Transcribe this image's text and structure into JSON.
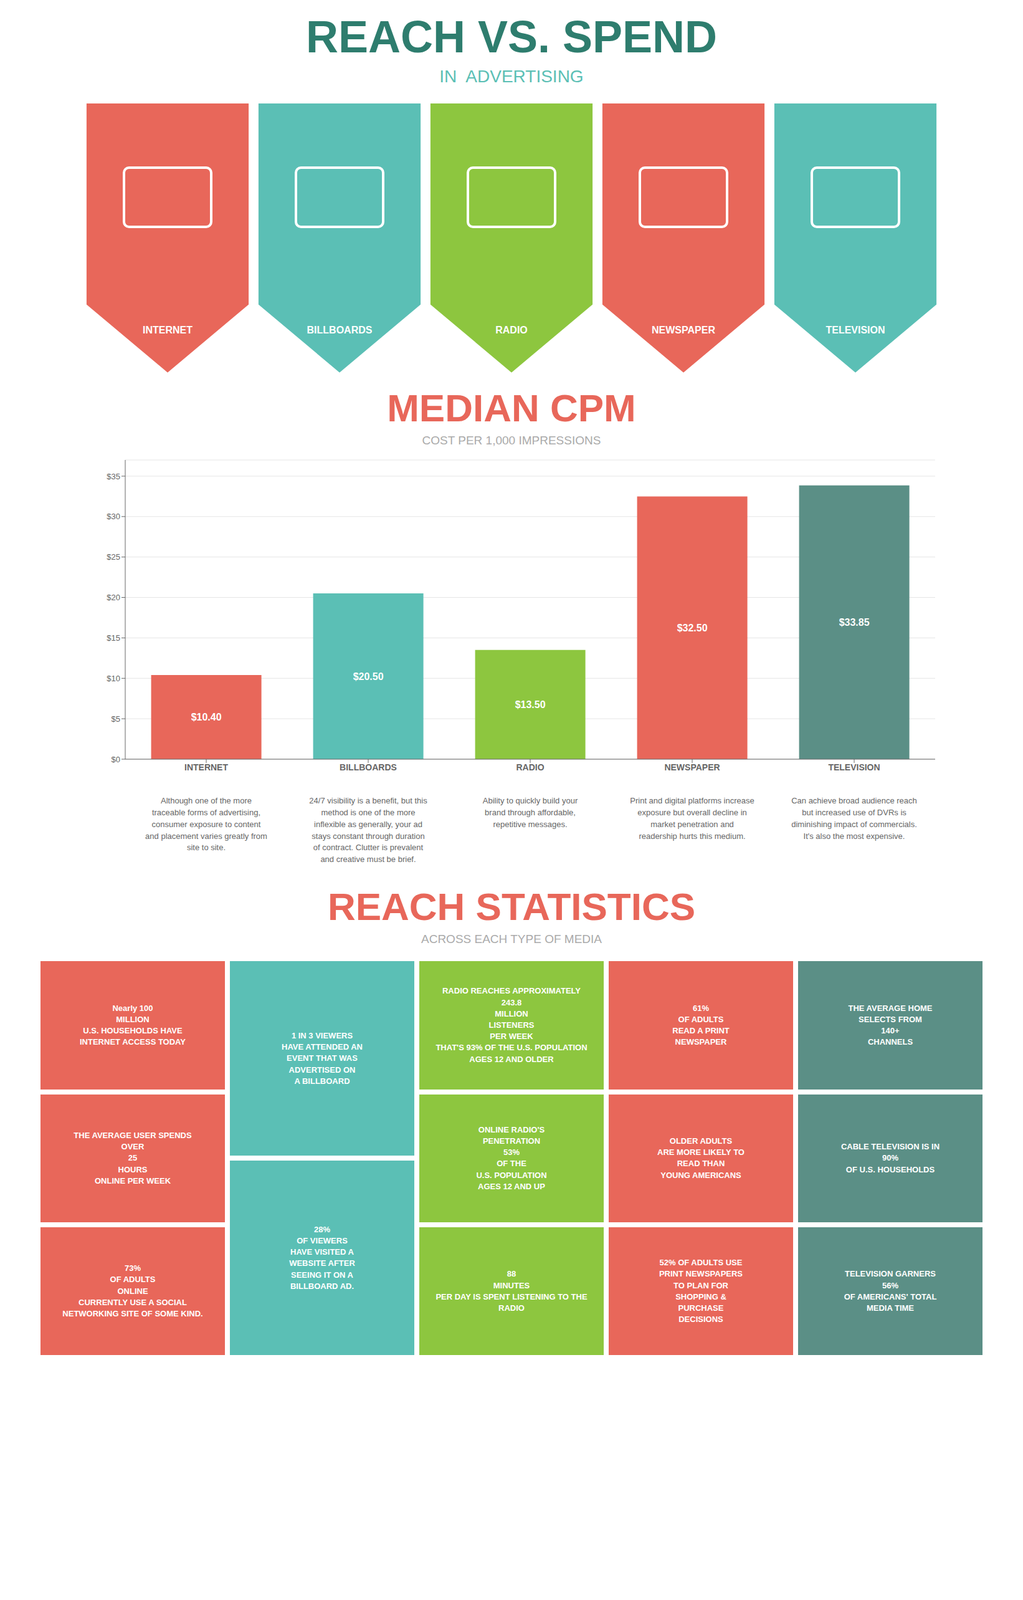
{
  "chart_data": {
    "type": "bar",
    "categories": [
      "INTERNET",
      "BILLBOARDS",
      "RADIO",
      "NEWSPAPER",
      "TELEVISION"
    ],
    "values": [
      10.4,
      20.5,
      13.5,
      32.5,
      33.85
    ],
    "value_labels": [
      "$10.40",
      "$20.50",
      "$13.50",
      "$32.50",
      "$33.85"
    ],
    "colors": [
      "#e8675a",
      "#5bbfb5",
      "#8dc63f",
      "#e8675a",
      "#5b8f86"
    ],
    "ylim": [
      0,
      37
    ],
    "yticks": [
      {
        "value": 0,
        "label": "$0"
      },
      {
        "value": 5,
        "label": "$5"
      },
      {
        "value": 10,
        "label": "$10"
      },
      {
        "value": 15,
        "label": "$15"
      },
      {
        "value": 20,
        "label": "$20"
      },
      {
        "value": 25,
        "label": "$25"
      },
      {
        "value": 30,
        "label": "$30"
      },
      {
        "value": 35,
        "label": "$35"
      }
    ],
    "grid": true,
    "data_labels": true,
    "annotations": [
      {
        "text": "REACH VS. SPEND",
        "color": "#2e7d6e"
      },
      {
        "text": "IN  ADVERTISING",
        "color": "#5bbfb5"
      },
      {
        "text": "INTERNET",
        "color": "#e8675a"
      },
      {
        "text": "BILLBOARDS",
        "color": "#5bbfb5"
      },
      {
        "text": "RADIO",
        "color": "#8dc63f"
      },
      {
        "text": "NEWSPAPER",
        "color": "#e8675a"
      },
      {
        "text": "TELEVISION",
        "color": "#5bbfb5"
      },
      {
        "text": "MEDIAN CPM",
        "color": "#e8675a"
      },
      {
        "text": "COST PER 1,000 IMPRESSIONS",
        "color": "#aaaaaa"
      },
      {
        "text": "Although one of the more\ntraceable forms of advertising,\nconsumer exposure to content\nand placement varies greatly from\nsite to site.",
        "color": "#666666"
      },
      {
        "text": "24/7 visibility is a benefit, but this\nmethod is one of the more\ninflexible as generally, your ad\nstays constant through duration\nof contract. Clutter is prevalent\nand creative must be brief.",
        "color": "#666666"
      },
      {
        "text": "Ability to quickly build your\nbrand through affordable,\nrepetitive messages.",
        "color": "#666666"
      },
      {
        "text": "Print and digital platforms increase\nexposure but overall decline in\nmarket penetration and\nreadership hurts this medium.",
        "color": "#666666"
      },
      {
        "text": "Can achieve broad audience reach\nbut increased use of DVRs is\ndiminishing impact of commercials.\nIt's also the most expensive.",
        "color": "#666666"
      },
      {
        "text": "REACH STATISTICS",
        "color": "#e8675a"
      },
      {
        "text": "ACROSS EACH TYPE OF MEDIA",
        "color": "#aaaaaa"
      },
      {
        "text": "Nearly 100\nMILLION\nU.S. HOUSEHOLDS HAVE\nINTERNET ACCESS TODAY",
        "color": "#e8675a"
      },
      {
        "text": "THE AVERAGE USER SPENDS\nOVER\n25\nHOURS\nONLINE PER WEEK",
        "color": "#e8675a"
      },
      {
        "text": "73%\nOF ADULTS\nONLINE\nCURRENTLY USE A SOCIAL\nNETWORKING SITE OF SOME KIND.",
        "color": "#e8675a"
      },
      {
        "text": "1 IN 3 VIEWERS\nHAVE ATTENDED AN\nEVENT THAT WAS\nADVERTISED ON\nA BILLBOARD",
        "color": "#5bbfb5"
      },
      {
        "text": "28%\nOF VIEWERS\nHAVE VISITED A\nWEBSITE AFTER\nSEEING IT ON A\nBILLBOARD AD.",
        "color": "#5bbfb5"
      },
      {
        "text": "RADIO REACHES APPROXIMATELY\n243.8\nMILLION\nLISTENERS\nPER WEEK\nTHAT'S 93% OF THE U.S. POPULATION\nAGES 12 AND OLDER",
        "color": "#8dc63f"
      },
      {
        "text": "ONLINE RADIO'S\nPENETRATION\n53%\nOF THE\nU.S. POPULATION\nAGES 12 AND UP",
        "color": "#8dc63f"
      },
      {
        "text": "88\nMINUTES\nPER DAY IS SPENT LISTENING TO THE RADIO",
        "color": "#8dc63f"
      },
      {
        "text": "61%\nOF ADULTS\nREAD A PRINT\nNEWSPAPER",
        "color": "#e8675a"
      },
      {
        "text": "OLDER ADULTS\nARE MORE LIKELY TO\nREAD THAN\nYOUNG AMERICANS",
        "color": "#e8675a"
      },
      {
        "text": "52% OF ADULTS USE\nPRINT NEWSPAPERS\nTO PLAN FOR\nSHOPPING &\nPURCHASE\nDECISIONS",
        "color": "#e8675a"
      },
      {
        "text": "THE AVERAGE HOME\nSELECTS FROM\n140+\nCHANNELS",
        "color": "#5b8f86"
      },
      {
        "text": "CABLE TELEVISION IS IN\n90%\nOF U.S. HOUSEHOLDS",
        "color": "#5b8f86"
      },
      {
        "text": "TELEVISION GARNERS\n56%\nOF AMERICANS' TOTAL\nMEDIA TIME",
        "color": "#5b8f86"
      }
    ]
  }
}
